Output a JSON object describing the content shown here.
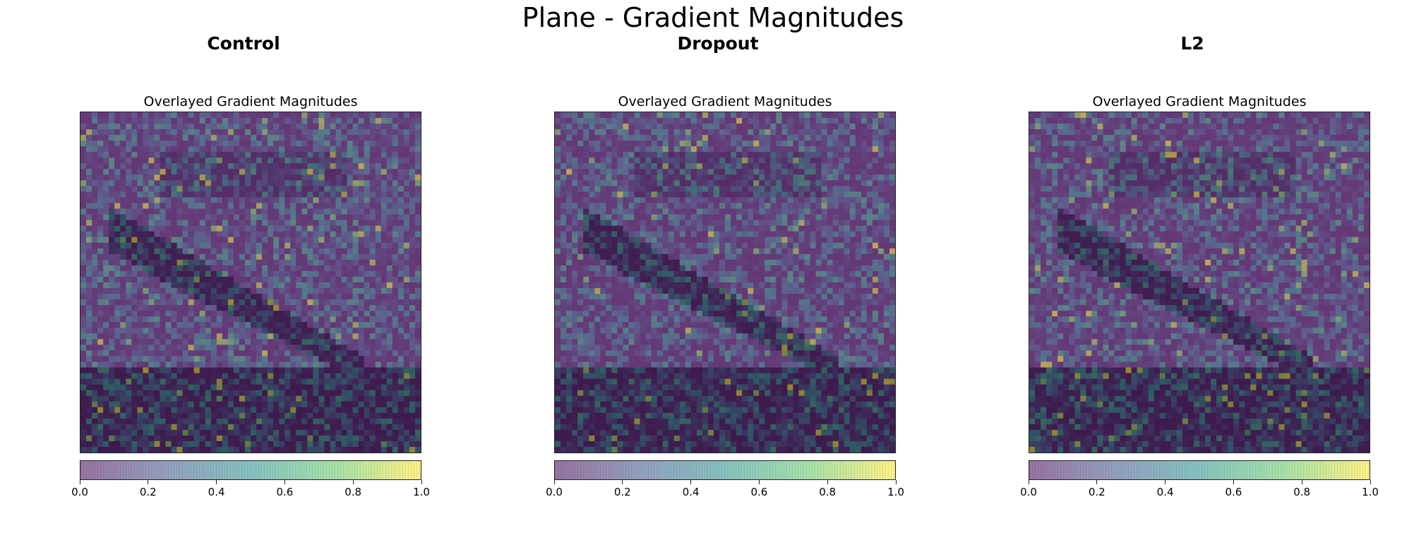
{
  "figure": {
    "title": "Plane - Gradient Magnitudes"
  },
  "chart_data": [
    {
      "type": "heatmap",
      "column_title": "Control",
      "title": "Overlayed Gradient Magnitudes",
      "colormap": "viridis",
      "overlay_alpha": 0.5,
      "colorbar": {
        "range": [
          0.0,
          1.0
        ],
        "ticks": [
          "0.0",
          "0.2",
          "0.4",
          "0.6",
          "0.8",
          "1.0"
        ]
      },
      "axes_visible": false
    },
    {
      "type": "heatmap",
      "column_title": "Dropout",
      "title": "Overlayed Gradient Magnitudes",
      "colormap": "viridis",
      "overlay_alpha": 0.5,
      "colorbar": {
        "range": [
          0.0,
          1.0
        ],
        "ticks": [
          "0.0",
          "0.2",
          "0.4",
          "0.6",
          "0.8",
          "1.0"
        ]
      },
      "axes_visible": false
    },
    {
      "type": "heatmap",
      "column_title": "L2",
      "title": "Overlayed Gradient Magnitudes",
      "colormap": "viridis",
      "overlay_alpha": 0.5,
      "colorbar": {
        "range": [
          0.0,
          1.0
        ],
        "ticks": [
          "0.0",
          "0.2",
          "0.4",
          "0.6",
          "0.8",
          "1.0"
        ]
      },
      "axes_visible": false
    }
  ]
}
